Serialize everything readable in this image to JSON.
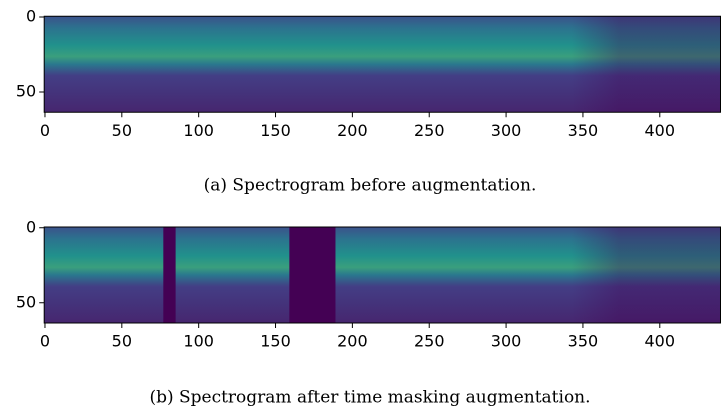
{
  "chart_data": [
    {
      "type": "image",
      "xlim": [
        -0.5,
        439.5
      ],
      "ylim": [
        63.5,
        -0.5
      ],
      "xticks": [
        0,
        50,
        100,
        150,
        200,
        250,
        300,
        350,
        400
      ],
      "yticks": [
        0,
        50
      ],
      "caption": "(a) Spectrogram before augmentation."
    },
    {
      "type": "image",
      "xlim": [
        -0.5,
        439.5
      ],
      "ylim": [
        63.5,
        -0.5
      ],
      "xticks": [
        0,
        50,
        100,
        150,
        200,
        250,
        300,
        350,
        400
      ],
      "yticks": [
        0,
        50
      ],
      "masks": [
        [
          77,
          85
        ],
        [
          159,
          189
        ]
      ],
      "mask_color": "#440154",
      "caption": "(b) Spectrogram after time masking augmentation."
    }
  ]
}
